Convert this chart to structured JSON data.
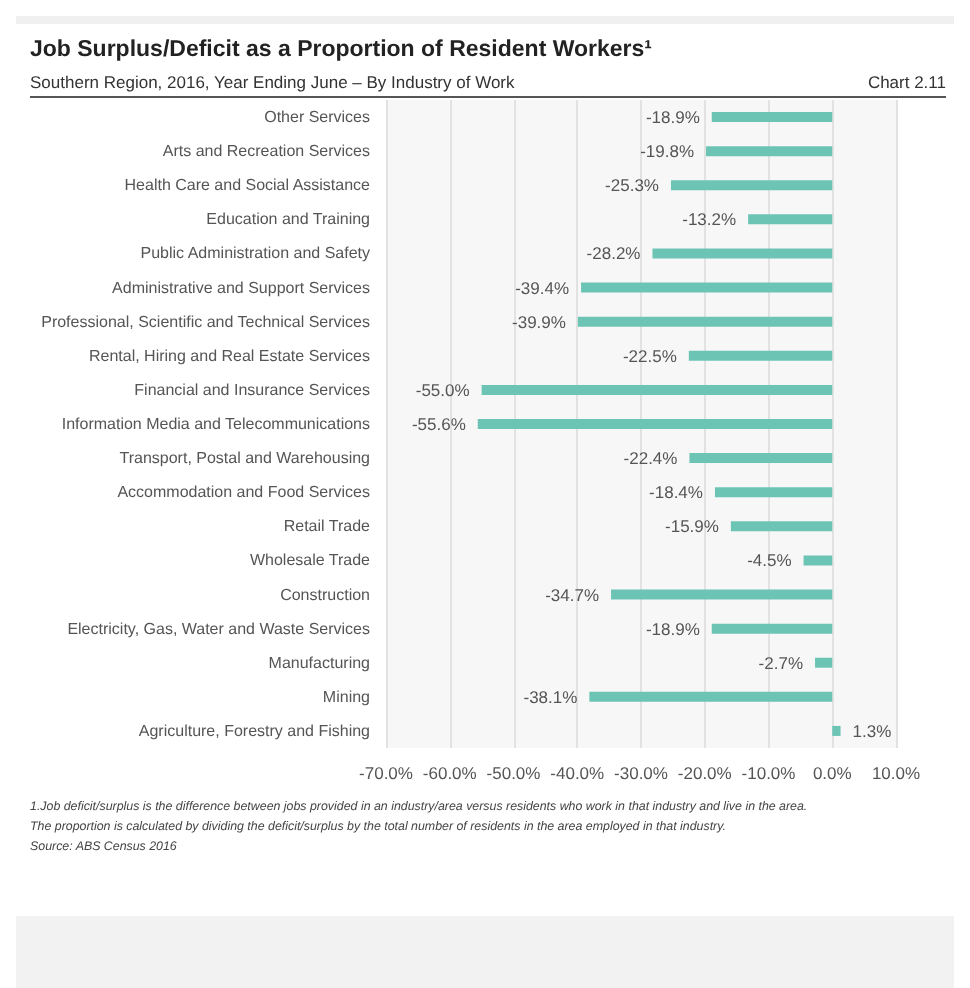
{
  "chart_data": {
    "type": "bar",
    "orientation": "horizontal",
    "title": "Job Surplus/Deficit as a Proportion of Resident Workers¹",
    "subtitle": "Southern Region, 2016, Year Ending June – By Industry of Work",
    "categories": [
      "Other Services",
      "Arts and Recreation Services",
      "Health Care and Social Assistance",
      "Education and Training",
      "Public Administration and Safety",
      "Administrative and Support Services",
      "Professional, Scientific and Technical Services",
      "Rental, Hiring and Real Estate Services",
      "Financial and Insurance Services",
      "Information Media and Telecommunications",
      "Transport, Postal and Warehousing",
      "Accommodation and Food Services",
      "Retail Trade",
      "Wholesale Trade",
      "Construction",
      "Electricity, Gas, Water and Waste Services",
      "Manufacturing",
      "Mining",
      "Agriculture, Forestry and Fishing"
    ],
    "values": [
      -18.9,
      -19.8,
      -25.3,
      -13.2,
      -28.2,
      -39.4,
      -39.9,
      -22.5,
      -55.0,
      -55.6,
      -22.4,
      -18.4,
      -15.9,
      -4.5,
      -34.7,
      -18.9,
      -2.7,
      -38.1,
      1.3
    ],
    "value_labels": [
      "-18.9%",
      "-19.8%",
      "-25.3%",
      "-13.2%",
      "-28.2%",
      "-39.4%",
      "-39.9%",
      "-22.5%",
      "-55.0%",
      "-55.6%",
      "-22.4%",
      "-18.4%",
      "-15.9%",
      "-4.5%",
      "-34.7%",
      "-18.9%",
      "-2.7%",
      "-38.1%",
      "1.3%"
    ],
    "color": "#6cc4b5",
    "xlim": [
      -70,
      10
    ],
    "xticks": [
      {
        "value": -70,
        "label": "-70.0%"
      },
      {
        "value": -60,
        "label": "-60.0%"
      },
      {
        "value": -50,
        "label": "-50.0%"
      },
      {
        "value": -40,
        "label": "-40.0%"
      },
      {
        "value": -30,
        "label": "-30.0%"
      },
      {
        "value": -20,
        "label": "-20.0%"
      },
      {
        "value": -10,
        "label": "-10.0%"
      },
      {
        "value": 0,
        "label": "0.0%"
      },
      {
        "value": 10,
        "label": "10.0%"
      }
    ],
    "grid": "x",
    "annotations": [
      "Chart 2.11",
      "1.Job deficit/surplus is the difference between jobs provided in an industry/area versus residents who work in that industry and live in the area.",
      "The proportion is calculated by dividing the deficit/surplus by the total number of residents in the area employed in that industry.",
      "Source: ABS Census 2016"
    ]
  }
}
